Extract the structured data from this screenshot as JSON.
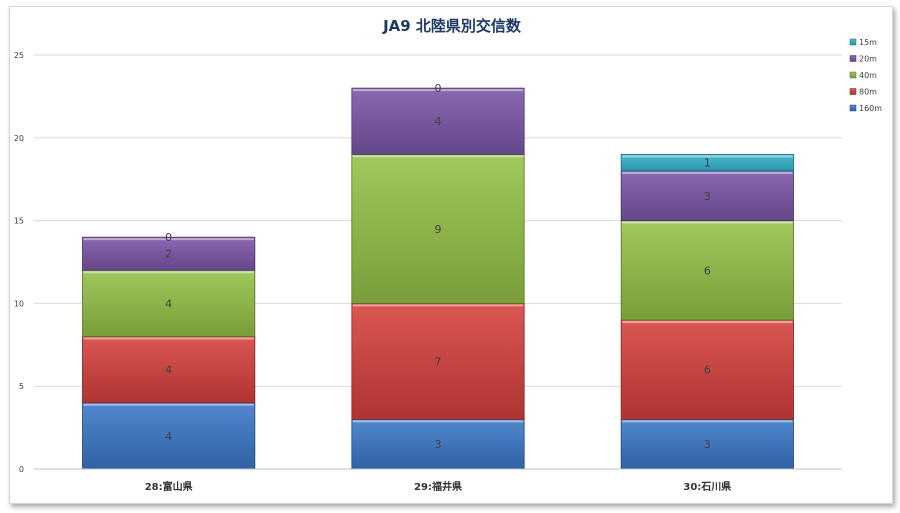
{
  "chart_data": {
    "type": "bar",
    "stacked": true,
    "title": "JA9 北陸県別交信数",
    "categories": [
      "28:富山県",
      "29:福井県",
      "30:石川県"
    ],
    "series": [
      {
        "name": "160m",
        "values": [
          4,
          3,
          3
        ],
        "color": "#3a78c8"
      },
      {
        "name": "80m",
        "values": [
          4,
          7,
          6
        ],
        "color": "#d6403c"
      },
      {
        "name": "40m",
        "values": [
          4,
          9,
          6
        ],
        "color": "#93c046"
      },
      {
        "name": "20m",
        "values": [
          2,
          4,
          3
        ],
        "color": "#7a55a8"
      },
      {
        "name": "15m",
        "values": [
          0,
          0,
          1
        ],
        "color": "#31b3cc"
      }
    ],
    "ylim": [
      0,
      25
    ],
    "yticks": [
      0,
      5,
      10,
      15,
      20,
      25
    ],
    "grid": true,
    "legend": "top-right",
    "xlabel": "",
    "ylabel": ""
  }
}
